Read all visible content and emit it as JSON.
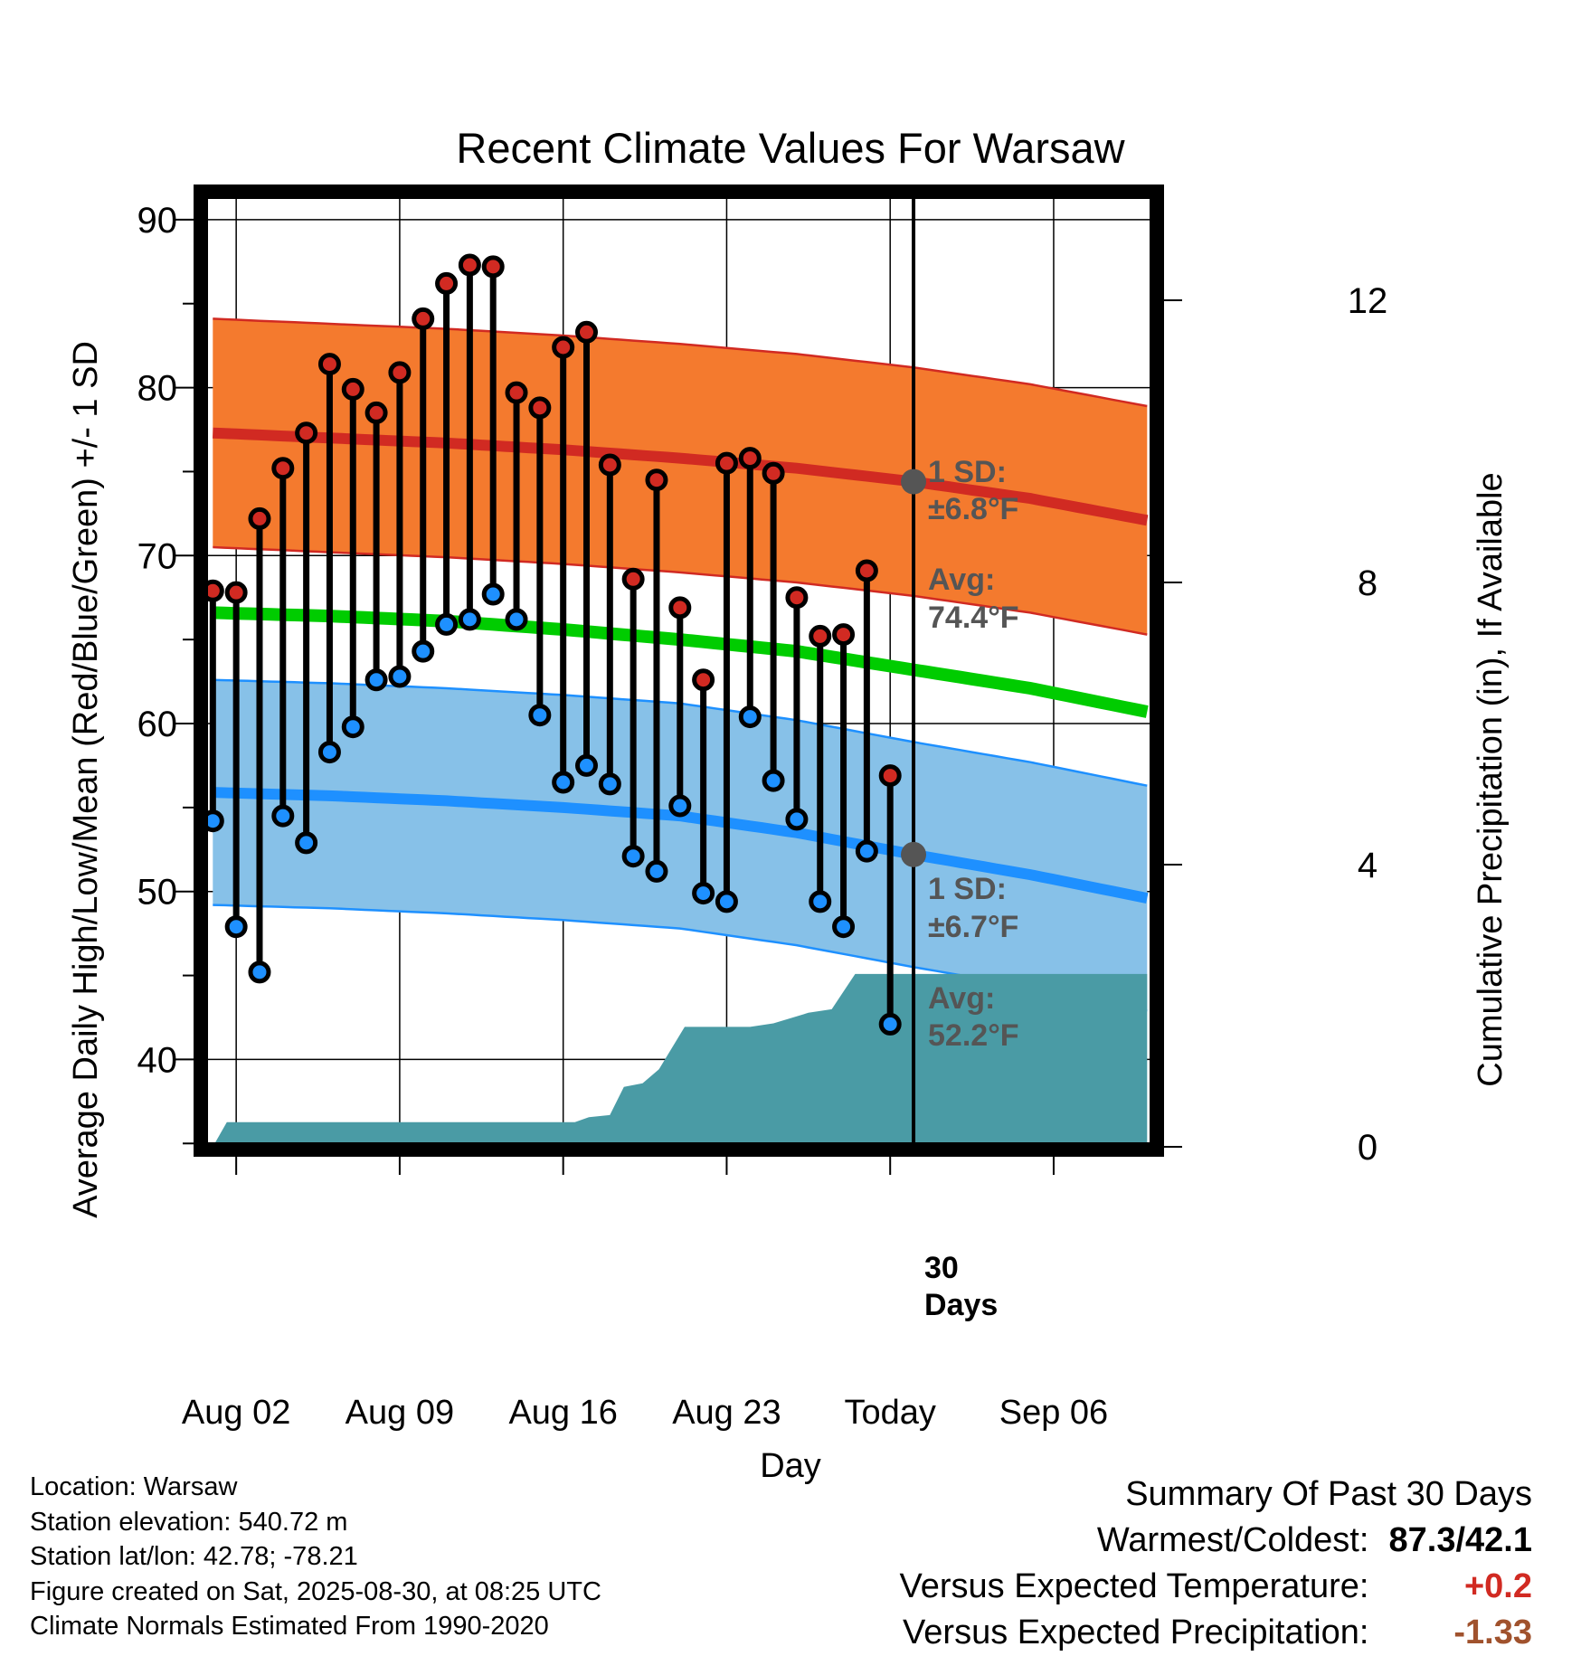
{
  "chart_data": {
    "type": "line",
    "title": "Recent Climate Values For Warsaw",
    "xlabel": "Day",
    "ylabel_left": "Average Daily High/Low/Mean (Red/Blue/Green) +/- 1 SD",
    "ylabel_right": "Cumulative Precipitation (in), If Available",
    "x_ticks": [
      "Aug 02",
      "Aug 09",
      "Aug 16",
      "Aug 23",
      "Today",
      "Sep 06"
    ],
    "x_range_days": [
      -0.4,
      40.3
    ],
    "y_left_range": [
      34.8,
      91.5
    ],
    "y_left_ticks": [
      40,
      50,
      60,
      70,
      80,
      90
    ],
    "y_right_range": [
      0,
      13.5
    ],
    "y_right_ticks": [
      0,
      4,
      8,
      12
    ],
    "today_day": 30,
    "daily_high": [
      67.9,
      67.8,
      72.2,
      75.2,
      77.3,
      81.4,
      79.9,
      78.5,
      80.9,
      84.1,
      86.2,
      87.3,
      87.2,
      79.7,
      78.8,
      82.4,
      83.3,
      75.4,
      68.6,
      74.5,
      66.9,
      62.6,
      75.5,
      75.8,
      74.9,
      67.5,
      65.2,
      65.3,
      69.1,
      56.9
    ],
    "daily_low": [
      54.2,
      47.9,
      45.2,
      54.5,
      52.9,
      58.3,
      59.8,
      62.6,
      62.8,
      64.3,
      65.9,
      66.2,
      67.7,
      66.2,
      60.5,
      56.5,
      57.5,
      56.4,
      52.1,
      51.2,
      55.1,
      49.9,
      49.4,
      60.4,
      56.6,
      54.3,
      49.4,
      47.9,
      52.4,
      42.1
    ],
    "normal_days": [
      0,
      5,
      10,
      15,
      20,
      25,
      30,
      35,
      40
    ],
    "normal_high": [
      77.3,
      77.0,
      76.7,
      76.3,
      75.8,
      75.2,
      74.4,
      73.4,
      72.1
    ],
    "normal_high_sd": 6.8,
    "normal_low": [
      55.9,
      55.7,
      55.4,
      55.0,
      54.5,
      53.5,
      52.2,
      51.0,
      49.6
    ],
    "normal_low_sd": 6.7,
    "normal_mean": [
      66.6,
      66.4,
      66.1,
      65.6,
      65.0,
      64.3,
      63.2,
      62.1,
      60.7
    ],
    "cumulative_precip_x": [
      0,
      0.6,
      15.5,
      16.1,
      17,
      17.6,
      18.4,
      19.1,
      20.2,
      21,
      22,
      23,
      24,
      25.5,
      26.5,
      27.5,
      27.8,
      28.4,
      30,
      40
    ],
    "cumulative_precip_in": [
      0.0,
      0.35,
      0.35,
      0.42,
      0.45,
      0.85,
      0.9,
      1.1,
      1.7,
      1.7,
      1.7,
      1.7,
      1.75,
      1.9,
      1.95,
      2.45,
      2.45,
      2.45,
      2.45,
      2.45
    ],
    "annotations": {
      "high_sd_label": "1 SD:",
      "high_sd_value": "±6.8°F",
      "high_avg_label": "Avg:",
      "high_avg_value": "74.4°F",
      "low_sd_label": "1 SD:",
      "low_sd_value": "±6.7°F",
      "low_avg_label": "Avg:",
      "low_avg_value": "52.2°F",
      "days_label_1": "30",
      "days_label_2": "Days"
    },
    "colors": {
      "high_band": "#F47A2E",
      "high_line": "#D12A22",
      "low_band": "#87C1E8",
      "low_line": "#1E90FF",
      "mean_line": "#00CC00",
      "precip_fill": "#4A9BA5",
      "high_dot": "#D12A22",
      "low_dot": "#1E90FF",
      "annotation_text": "#555555"
    }
  },
  "info": {
    "location": "Location: Warsaw",
    "elevation": "Station elevation: 540.72 m",
    "latlon": "Station lat/lon: 42.78; -78.21",
    "created": "Figure created on Sat, 2025-08-30, at 08:25 UTC",
    "normals": "Climate Normals Estimated From 1990-2020"
  },
  "summary": {
    "title": "Summary Of Past 30 Days",
    "warm_cold_label": "Warmest/Coldest:",
    "warm_cold_value": "87.3/42.1",
    "temp_label": "Versus Expected Temperature:",
    "temp_value": "+0.2",
    "temp_color": "#D12A22",
    "precip_label": "Versus Expected Precipitation:",
    "precip_value": "-1.33",
    "precip_color": "#A0522D"
  }
}
